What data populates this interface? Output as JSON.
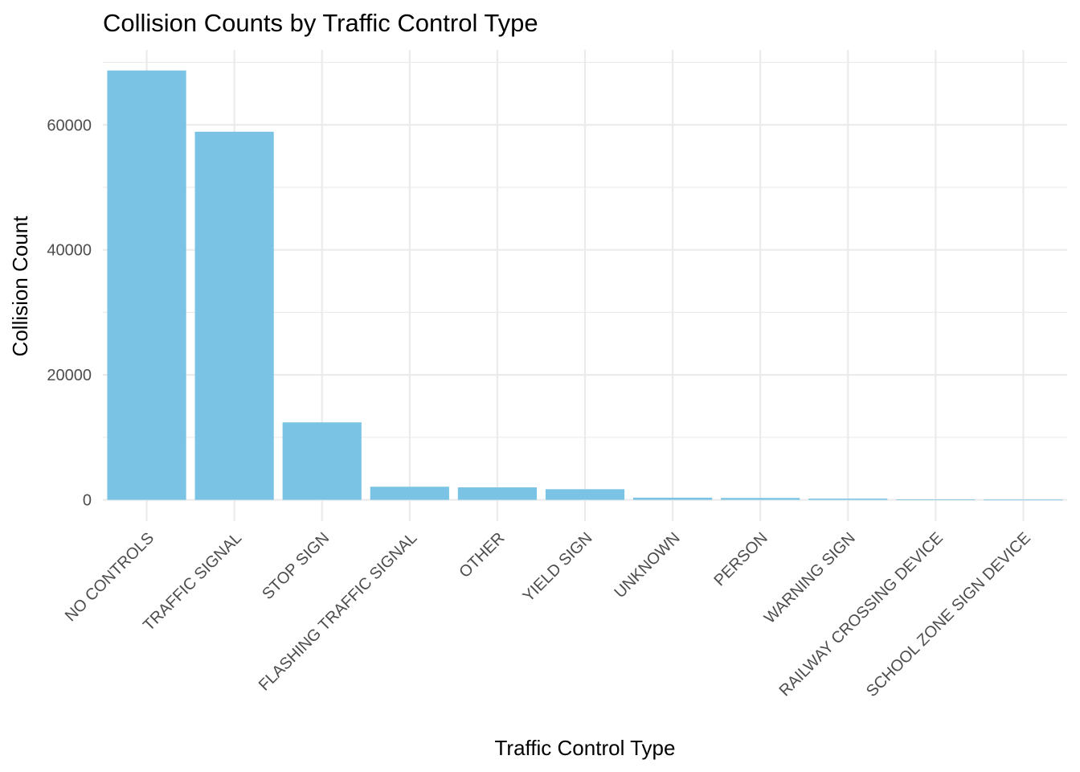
{
  "chart_data": {
    "type": "bar",
    "title": "Collision Counts by Traffic Control Type",
    "xlabel": "Traffic Control Type",
    "ylabel": "Collision Count",
    "categories": [
      "NO CONTROLS",
      "TRAFFIC SIGNAL",
      "STOP SIGN",
      "FLASHING TRAFFIC SIGNAL",
      "OTHER",
      "YIELD SIGN",
      "UNKNOWN",
      "PERSON",
      "WARNING SIGN",
      "RAILWAY CROSSING DEVICE",
      "SCHOOL ZONE SIGN DEVICE"
    ],
    "values": [
      68700,
      58900,
      12400,
      2100,
      2000,
      1700,
      350,
      300,
      200,
      60,
      30
    ],
    "ylim": [
      -3400,
      72000
    ],
    "yticks": [
      0,
      20000,
      40000,
      60000
    ],
    "ytick_labels": [
      "0",
      "20000",
      "40000",
      "60000"
    ],
    "grid": true,
    "legend": "none",
    "colors": {
      "bar": "#7AC3E5",
      "grid": "#EBEBEB",
      "tick_text": "#4D4D4D"
    }
  }
}
